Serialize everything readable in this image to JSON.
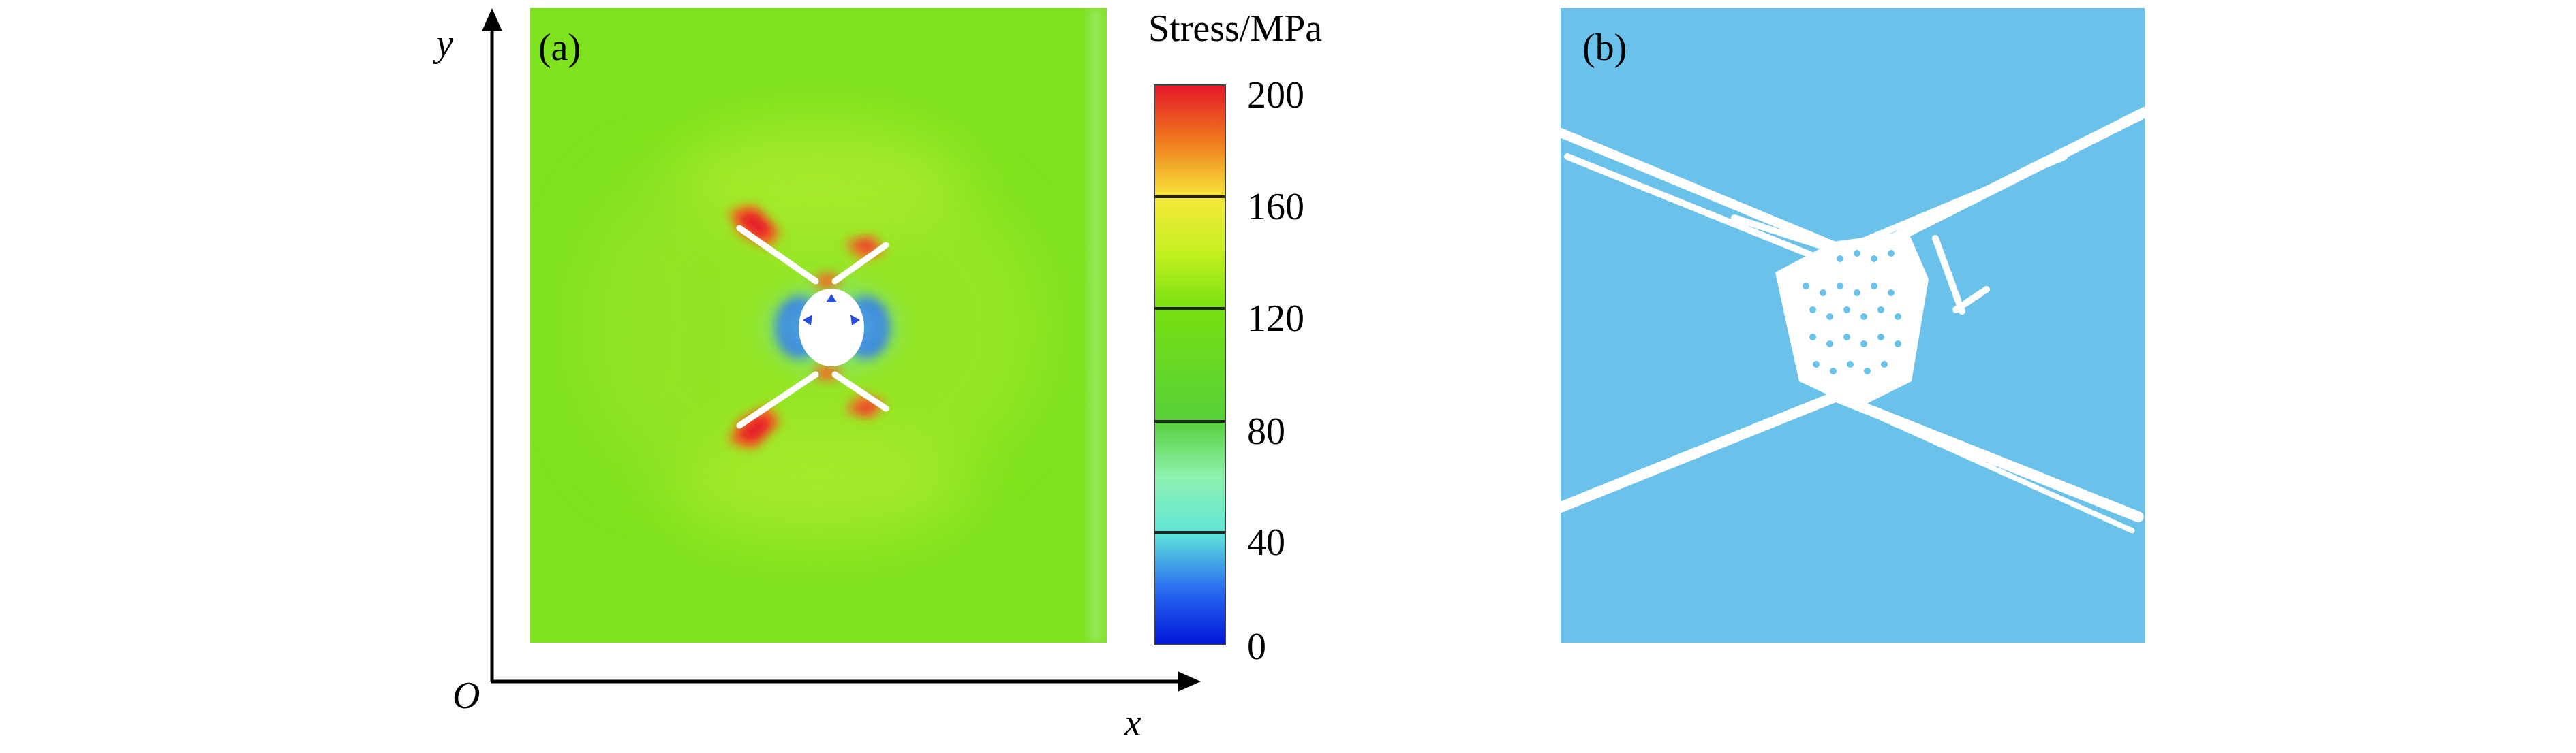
{
  "figure": {
    "panel_a": {
      "label": "(a)",
      "axis_x_label": "x",
      "axis_y_label": "y",
      "origin_label": "O"
    },
    "colorbar": {
      "title": "Stress/MPa",
      "ticks": [
        "200",
        "160",
        "120",
        "80",
        "40",
        "0"
      ],
      "range": [
        0,
        200
      ],
      "colors": {
        "v0": "#0014d8",
        "v20": "#2a6ef0",
        "v40": "#5fe6d8",
        "v60": "#8ff2b0",
        "v80": "#56d03a",
        "v120": "#78e010",
        "v140": "#c4f020",
        "v160": "#f6e83a",
        "v180": "#f07a1c",
        "v200": "#e5172a"
      }
    },
    "panel_b": {
      "label": "(b)",
      "background_color": "#6ac2ea",
      "crack_color": "#ffffff"
    },
    "field_color": "#7fe21f"
  }
}
